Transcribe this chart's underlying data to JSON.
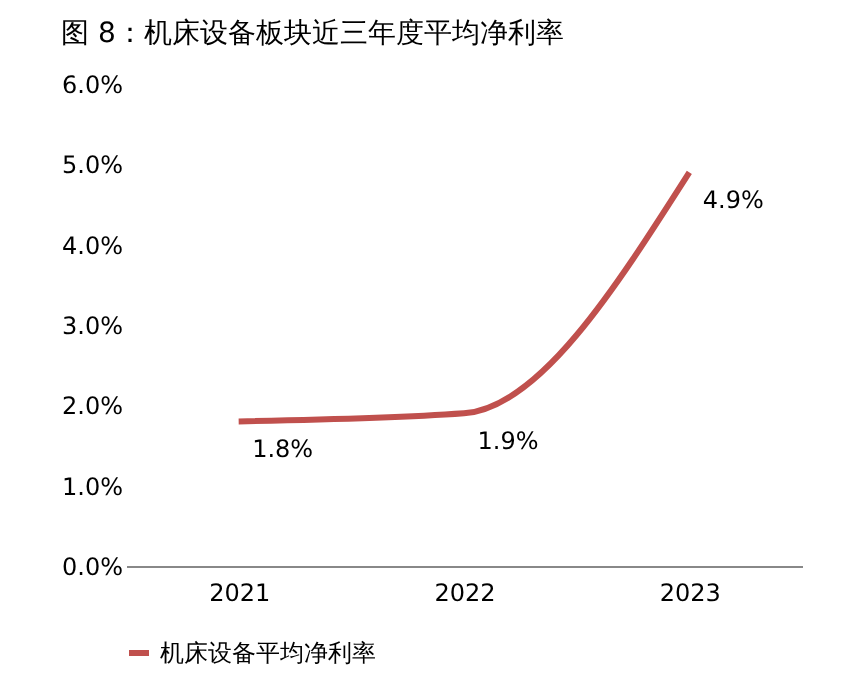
{
  "chart_data": {
    "type": "line",
    "title": "图 8：机床设备板块近三年度平均净利率",
    "categories": [
      "2021",
      "2022",
      "2023"
    ],
    "series": [
      {
        "name": "机床设备平均净利率",
        "color": "#c0504d",
        "values": [
          1.8,
          1.9,
          4.9
        ],
        "value_labels": [
          "1.8%",
          "1.9%",
          "4.9%"
        ]
      }
    ],
    "ylim": [
      0,
      6
    ],
    "yticks": [
      {
        "value": 0,
        "label": "0.0%"
      },
      {
        "value": 1,
        "label": "1.0%"
      },
      {
        "value": 2,
        "label": "2.0%"
      },
      {
        "value": 3,
        "label": "3.0%"
      },
      {
        "value": 4,
        "label": "4.0%"
      },
      {
        "value": 5,
        "label": "5.0%"
      },
      {
        "value": 6,
        "label": "6.0%"
      }
    ],
    "grid": false,
    "legend": "bottom",
    "marker": "none",
    "line_style": "solid"
  }
}
